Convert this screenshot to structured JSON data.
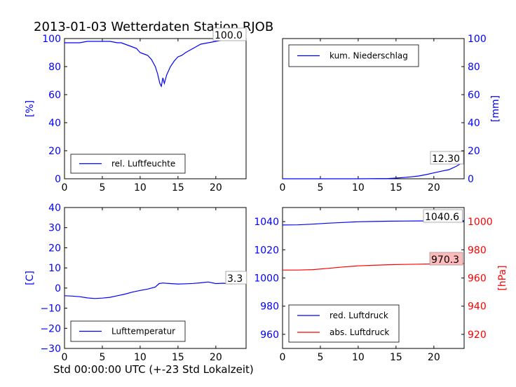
{
  "figure_title": "2013-01-03 Wetterdaten Station RJOB",
  "xlabel": "Std 00:00:00 UTC (+-23 Std Lokalzeit)",
  "colors": {
    "blue": "#0000ff",
    "red": "#ff0000",
    "annot_box": "#ffbbbb"
  },
  "chart_data": [
    {
      "type": "line",
      "panel": "top-left",
      "ylabel": "[%]",
      "ylim": [
        0,
        100
      ],
      "xlim": [
        0,
        24
      ],
      "xticks": [
        "0",
        "5",
        "10",
        "15",
        "20"
      ],
      "yticks": [
        "0",
        "20",
        "40",
        "60",
        "80",
        "100"
      ],
      "legend_placement": "lower-center",
      "annotation": "100.0",
      "series": [
        {
          "name": "rel. Luftfeuchte",
          "color": "#0000ff",
          "x": [
            0,
            1,
            2,
            3,
            4,
            5,
            6,
            7,
            7.5,
            8,
            8.5,
            9,
            9.5,
            10,
            10.5,
            11,
            11.5,
            12,
            12.3,
            12.6,
            12.8,
            13,
            13.2,
            13.5,
            14,
            14.5,
            15,
            15.5,
            16,
            17,
            18,
            19,
            20,
            21,
            22,
            23,
            24
          ],
          "y": [
            97,
            97,
            97,
            98,
            98,
            98,
            98,
            97,
            97,
            96,
            95,
            94,
            93,
            90,
            89,
            88,
            85,
            80,
            75,
            68,
            66,
            72,
            68,
            74,
            80,
            84,
            87,
            88,
            90,
            93,
            96,
            97,
            98,
            99,
            100,
            100,
            100
          ]
        }
      ]
    },
    {
      "type": "line",
      "panel": "top-right",
      "ylabel": "[mm]",
      "ylim": [
        0,
        100
      ],
      "xlim": [
        0,
        24
      ],
      "xticks": [
        "0",
        "5",
        "10",
        "15",
        "20"
      ],
      "yticks": [
        "0",
        "20",
        "40",
        "60",
        "80",
        "100"
      ],
      "legend_placement": "upper-left",
      "annotation": "12.30",
      "series": [
        {
          "name": "kum. Niederschlag",
          "color": "#0000ff",
          "x": [
            0,
            10,
            14,
            15,
            16,
            17,
            18,
            19,
            20,
            21,
            22,
            23,
            24
          ],
          "y": [
            0,
            0,
            0.2,
            0.5,
            0.9,
            1.4,
            2,
            3,
            4.2,
            5.4,
            6.5,
            9,
            12.3
          ]
        }
      ]
    },
    {
      "type": "line",
      "panel": "bottom-left",
      "ylabel": "[C]",
      "ylim": [
        -30,
        40
      ],
      "xlim": [
        0,
        24
      ],
      "xticks": [
        "0",
        "5",
        "10",
        "15",
        "20"
      ],
      "yticks": [
        "-30",
        "-20",
        "-10",
        "0",
        "10",
        "20",
        "30",
        "40"
      ],
      "legend_placement": "lower-center",
      "annotation": "3.3",
      "series": [
        {
          "name": "Lufttemperatur",
          "color": "#0000ff",
          "x": [
            0,
            1,
            2,
            3,
            4,
            5,
            6,
            7,
            8,
            9,
            10,
            11,
            12,
            12.5,
            13,
            14,
            15,
            16,
            17,
            18,
            19,
            20,
            21,
            22,
            23,
            24
          ],
          "y": [
            -3.8,
            -4,
            -4.3,
            -4.9,
            -5.2,
            -5,
            -4.6,
            -3.8,
            -3,
            -2,
            -1.2,
            -0.5,
            0.5,
            2.2,
            2.5,
            2.2,
            2,
            2.1,
            2.3,
            2.6,
            3,
            2.2,
            2.4,
            2.1,
            2.5,
            3.3
          ]
        }
      ]
    },
    {
      "type": "line",
      "panel": "bottom-right",
      "ylabel_right": "[hPa]",
      "ylim_left": [
        950,
        1050
      ],
      "ylim_right": [
        910,
        1010
      ],
      "xlim": [
        0,
        24
      ],
      "xticks": [
        "0",
        "5",
        "10",
        "15",
        "20"
      ],
      "yticks_left": [
        "960",
        "980",
        "1000",
        "1020",
        "1040"
      ],
      "yticks_right": [
        "920",
        "940",
        "960",
        "980",
        "1000"
      ],
      "legend_placement": "lower-center",
      "annotations": [
        "1040.6",
        "970.3"
      ],
      "series": [
        {
          "name": "red. Luftdruck",
          "color": "#0000ff",
          "axis": "left",
          "x": [
            0,
            2,
            4,
            6,
            8,
            10,
            12,
            14,
            16,
            18,
            20,
            22,
            24
          ],
          "y": [
            1037.6,
            1037.7,
            1038.2,
            1038.9,
            1039.4,
            1039.9,
            1040.1,
            1040.3,
            1040.4,
            1040.5,
            1040.5,
            1040.6,
            1040.6
          ]
        },
        {
          "name": "abs. Luftdruck",
          "color": "#ff0000",
          "axis": "right",
          "x": [
            0,
            2,
            4,
            6,
            8,
            10,
            12,
            14,
            16,
            18,
            20,
            22,
            24
          ],
          "y": [
            965.6,
            965.6,
            965.9,
            966.8,
            967.8,
            968.6,
            969.0,
            969.4,
            969.6,
            969.8,
            970.0,
            970.2,
            970.3
          ]
        }
      ]
    }
  ]
}
